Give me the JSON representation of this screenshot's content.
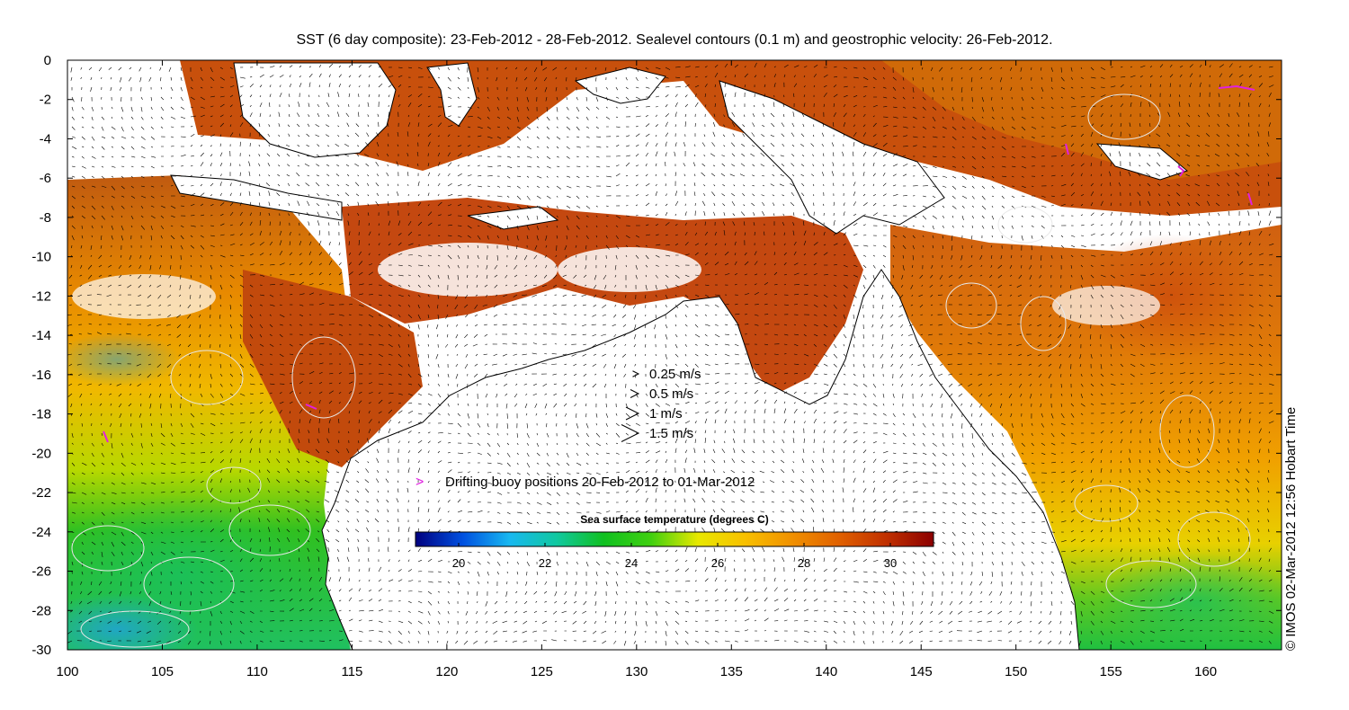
{
  "title": "SST (6 day composite): 23-Feb-2012 - 28-Feb-2012. Sealevel contours (0.1 m) and geostrophic velocity: 26-Feb-2012.",
  "credit": "© IMOS 02-Mar-2012 12:56 Hobart Time",
  "axes": {
    "x_ticks": [
      "100",
      "105",
      "110",
      "115",
      "120",
      "125",
      "130",
      "135",
      "140",
      "145",
      "150",
      "155",
      "160"
    ],
    "y_ticks": [
      "0",
      "-2",
      "-4",
      "-6",
      "-8",
      "-10",
      "-12",
      "-14",
      "-16",
      "-18",
      "-20",
      "-22",
      "-24",
      "-26",
      "-28",
      "-30"
    ],
    "lon_range": [
      100,
      164
    ],
    "lat_range": [
      -30,
      0
    ]
  },
  "velocity_legend": [
    {
      "label": "0.25 m/s",
      "speed": 0.25
    },
    {
      "label": "0.5 m/s",
      "speed": 0.5
    },
    {
      "label": "1 m/s",
      "speed": 1
    },
    {
      "label": "1.5 m/s",
      "speed": 1.5
    }
  ],
  "buoy_legend": {
    "label": "Drifting buoy positions 20-Feb-2012 to 01-Mar-2012",
    "color": "#e020e0"
  },
  "colorbar": {
    "title": "Sea surface temperature (degrees C)",
    "range": [
      19,
      31
    ],
    "ticks": [
      "20",
      "22",
      "24",
      "26",
      "28",
      "30"
    ],
    "stops": [
      "#00007f",
      "#0050e0",
      "#18b8f0",
      "#10c8a0",
      "#10c020",
      "#40d010",
      "#e8e800",
      "#f8c000",
      "#f09000",
      "#e06000",
      "#c03000",
      "#8c0000"
    ]
  },
  "colors": {
    "land": "#ffffff",
    "coast": "#000000",
    "sst_warm": "#c04010",
    "sst_mid": "#f0a000",
    "sst_cool": "#20c020"
  }
}
